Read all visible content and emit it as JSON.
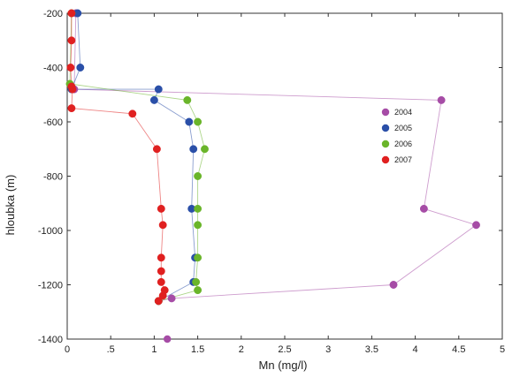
{
  "chart_data": {
    "type": "line",
    "xlabel": "Mn (mg/l)",
    "ylabel": "hloubka (m)",
    "xlim": [
      0,
      5
    ],
    "ylim": [
      -1400,
      -200
    ],
    "xticks": [
      0,
      0.5,
      1,
      1.5,
      2,
      2.5,
      3,
      3.5,
      4,
      4.5,
      5
    ],
    "xtick_labels": [
      "0",
      ".5",
      "1",
      "1.5",
      "2",
      "2.5",
      "3",
      "3.5",
      "4",
      "4.5",
      "5"
    ],
    "yticks": [
      -200,
      -400,
      -600,
      -800,
      -1000,
      -1200,
      -1400
    ],
    "ytick_labels": [
      "-200",
      "-400",
      "-600",
      "-800",
      "-1000",
      "-1200",
      "-1400"
    ],
    "grid": false,
    "legend_position": "right-center",
    "series": [
      {
        "name": "2004",
        "color": "#a64ca6",
        "x": [
          0.1,
          0.08,
          4.3,
          4.1,
          4.7,
          3.75,
          1.2,
          1.05
        ],
        "y": [
          -200,
          -480,
          -520,
          -920,
          -980,
          -1200,
          -1250,
          -1260
        ]
      },
      {
        "name": "2005",
        "color": "#2a4fa8",
        "x": [
          0.12,
          0.15,
          0.05,
          1.05,
          1.0,
          1.4,
          1.45,
          1.43,
          1.47,
          1.45,
          1.05
        ],
        "y": [
          -200,
          -400,
          -480,
          -480,
          -520,
          -600,
          -700,
          -920,
          -1100,
          -1190,
          -1260
        ]
      },
      {
        "name": "2006",
        "color": "#6ab52a",
        "x": [
          0.05,
          0.03,
          1.38,
          1.5,
          1.58,
          1.5,
          1.5,
          1.5,
          1.5,
          1.48,
          1.5,
          1.05
        ],
        "y": [
          -200,
          -460,
          -520,
          -600,
          -700,
          -800,
          -920,
          -980,
          -1100,
          -1190,
          -1220,
          -1260
        ]
      },
      {
        "name": "2007",
        "color": "#e02020",
        "x": [
          0.05,
          0.05,
          0.04,
          0.05,
          0.06,
          0.05,
          0.75,
          1.03,
          1.08,
          1.1,
          1.08,
          1.08,
          1.08,
          1.12,
          1.1,
          1.05
        ],
        "y": [
          -200,
          -300,
          -400,
          -470,
          -480,
          -550,
          -570,
          -700,
          -920,
          -980,
          -1100,
          -1150,
          -1190,
          -1220,
          -1240,
          -1260
        ]
      }
    ],
    "extra_points": [
      {
        "series": "2004",
        "x": 1.15,
        "y": -1400
      }
    ]
  }
}
